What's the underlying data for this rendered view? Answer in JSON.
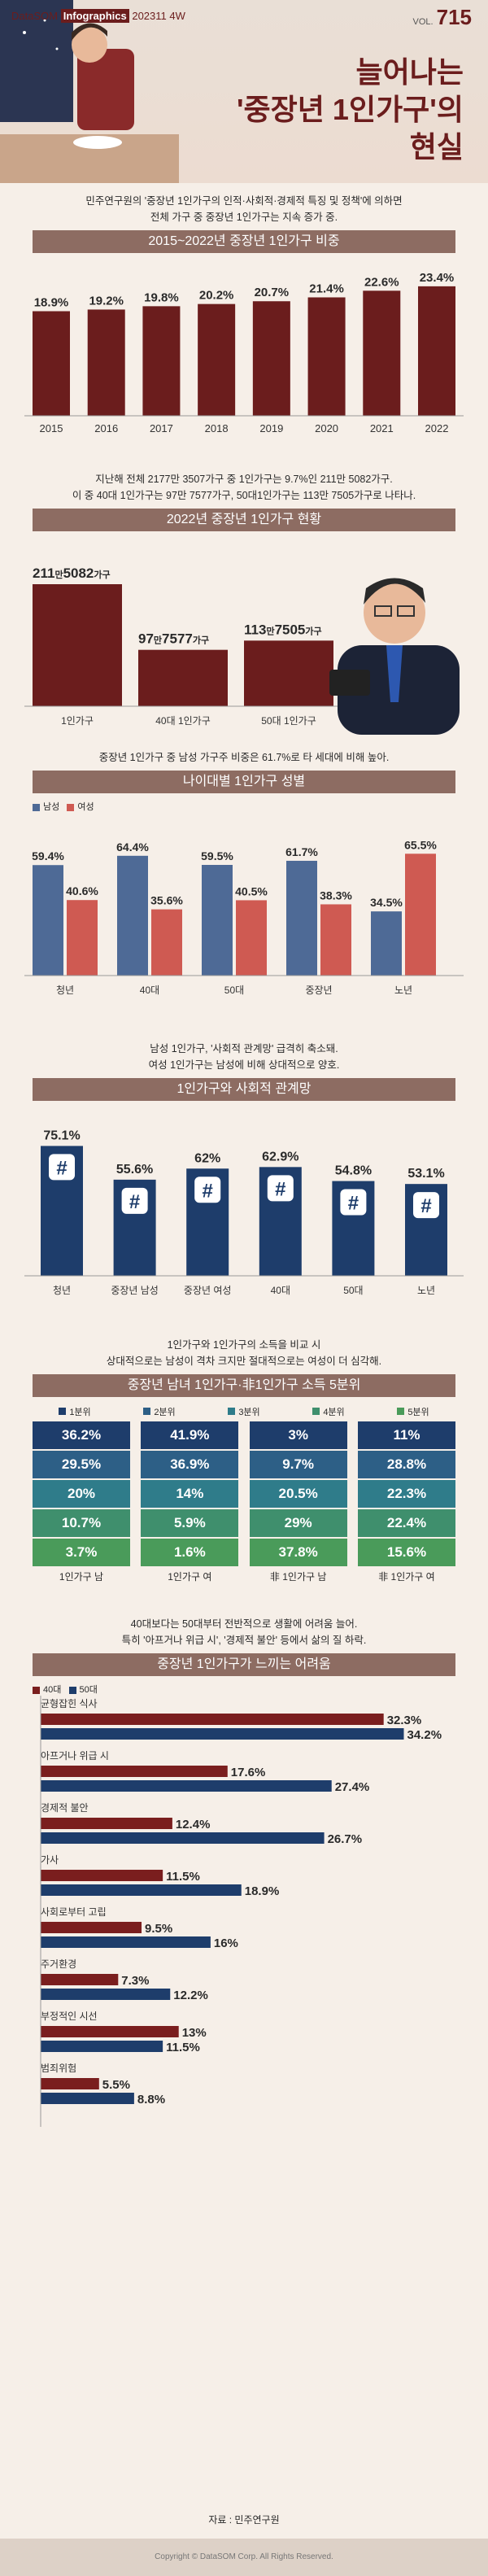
{
  "header": {
    "brand_1": "DataSOM",
    "brand_2": "Infographics",
    "issue": "202311 4W",
    "vol_label": "VOL.",
    "vol_no": "715",
    "title_1": "늘어나는",
    "title_2": "'중장년 1인가구'의",
    "title_3": "현실"
  },
  "intro": {
    "line1": "민주연구원의 '중장년 1인가구의 인적·사회적·경제적 특징 및 정책'에 의하면",
    "line2": "전체 가구 중 중장년 1인가구는 지속 증가 중."
  },
  "s1": {
    "band": "2015~2022년 중장년 1인가구 비중"
  },
  "s2": {
    "text1": "지난해 전체 2177만 3507가구 중 1인가구는 9.7%인 211만 5082가구.",
    "text2": "이 중 40대 1인가구는 97만 7577가구, 50대1인가구는 113만 7505가구로 나타나.",
    "band": "2022년 중장년 1인가구 현황"
  },
  "s3": {
    "text1": "중장년 1인가구 중 남성 가구주 비중은 61.7%로 타 세대에 비해 높아.",
    "band": "나이대별 1인가구 성별",
    "legend_m": "남성",
    "legend_f": "여성"
  },
  "s4": {
    "text1": "남성 1인가구, '사회적 관계망' 급격히 축소돼.",
    "text2": "여성 1인가구는 남성에 비해 상대적으로 양호.",
    "band": "1인가구와 사회적 관계망"
  },
  "s5": {
    "text1": "1인가구와 1인가구의 소득을 비교 시",
    "text2": "상대적으로는 남성이 격차 크지만 절대적으로는 여성이 더 심각해.",
    "band": "중장년 남녀 1인가구·非1인가구 소득 5분위",
    "legend": [
      "1분위",
      "2분위",
      "3분위",
      "4분위",
      "5분위"
    ],
    "colors": [
      "#1e3d6b",
      "#2d5f86",
      "#2f7c8a",
      "#3f8f6d",
      "#4a9b5a"
    ],
    "columns": [
      {
        "label": "1인가구 남",
        "values": [
          "36.2%",
          "29.5%",
          "20%",
          "10.7%",
          "3.7%"
        ]
      },
      {
        "label": "1인가구 여",
        "values": [
          "41.9%",
          "36.9%",
          "14%",
          "5.9%",
          "1.6%"
        ]
      },
      {
        "label": "非 1인가구 남",
        "values": [
          "3%",
          "9.7%",
          "20.5%",
          "29%",
          "37.8%"
        ]
      },
      {
        "label": "非 1인가구 여",
        "values": [
          "11%",
          "28.8%",
          "22.3%",
          "22.4%",
          "15.6%"
        ]
      }
    ]
  },
  "s6": {
    "text1": "40대보다는 50대부터 전반적으로 생활에 어려움 늘어.",
    "text2": "특히 '아프거나 위급 시', '경제적 불안' 등에서 삶의 질 하락.",
    "band": "중장년 1인가구가 느끼는 어려움",
    "legend_40": "40대",
    "legend_50": "50대"
  },
  "source": "자료 : 민주연구원",
  "footer": "Copyright © DataSOM Corp. All Rights Reserved.",
  "chart_data": [
    {
      "type": "bar",
      "title": "2015~2022년 중장년 1인가구 비중",
      "categories": [
        "2015",
        "2016",
        "2017",
        "2018",
        "2019",
        "2020",
        "2021",
        "2022"
      ],
      "values": [
        18.9,
        19.2,
        19.8,
        20.2,
        20.7,
        21.4,
        22.6,
        23.4
      ],
      "unit": "%",
      "color": "#6b1d1d"
    },
    {
      "type": "bar",
      "title": "2022년 중장년 1인가구 현황",
      "categories": [
        "1인가구",
        "40대 1인가구",
        "50대 1인가구"
      ],
      "values": [
        2115082,
        977577,
        1137505
      ],
      "value_labels": [
        [
          "211",
          "만",
          "5082",
          "가구"
        ],
        [
          "97",
          "만",
          "7577",
          "가구"
        ],
        [
          "113",
          "만",
          "7505",
          "가구"
        ]
      ],
      "color": "#6b1d1d"
    },
    {
      "type": "bar",
      "title": "나이대별 1인가구 성별",
      "categories": [
        "청년",
        "40대",
        "50대",
        "중장년",
        "노년"
      ],
      "series": [
        {
          "name": "남성",
          "values": [
            59.4,
            64.4,
            59.5,
            61.7,
            34.5
          ],
          "color": "#4e6a96"
        },
        {
          "name": "여성",
          "values": [
            40.6,
            35.6,
            40.5,
            38.3,
            65.5
          ],
          "color": "#cf5a52"
        }
      ],
      "unit": "%"
    },
    {
      "type": "bar",
      "title": "1인가구와 사회적 관계망",
      "categories": [
        "청년",
        "중장년 남성",
        "중장년 여성",
        "40대",
        "50대",
        "노년"
      ],
      "values": [
        75.1,
        55.6,
        62,
        62.9,
        54.8,
        53.1
      ],
      "unit": "%",
      "color": "#1e3d6b"
    },
    {
      "type": "bar",
      "title": "중장년 1인가구가 느끼는 어려움",
      "orientation": "horizontal",
      "categories": [
        "균형잡힌 식사",
        "아프거나 위급 시",
        "경제적 불안",
        "가사",
        "사회로부터 고립",
        "주거환경",
        "부정적인 시선",
        "범죄위험"
      ],
      "series": [
        {
          "name": "40대",
          "values": [
            32.3,
            17.6,
            12.4,
            11.5,
            9.5,
            7.3,
            13,
            5.5
          ],
          "color": "#7a1e1e"
        },
        {
          "name": "50대",
          "values": [
            34.2,
            27.4,
            26.7,
            18.9,
            16,
            12.2,
            11.5,
            8.8
          ],
          "color": "#1e3d6b"
        }
      ],
      "unit": "%"
    }
  ]
}
